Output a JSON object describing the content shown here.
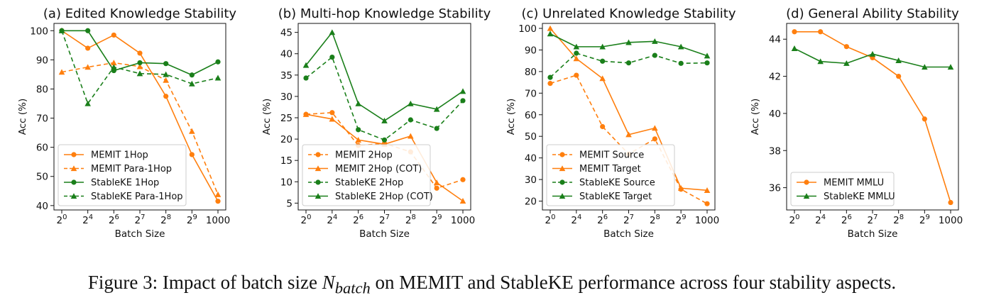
{
  "caption": {
    "prefix": "Figure 3: Impact of batch size ",
    "symbol": "N",
    "subscript": "batch",
    "suffix": " on MEMIT and StableKE performance across four stability aspects."
  },
  "colors": {
    "memit": "#ff7f0e",
    "stableke": "#1a7f1a"
  },
  "chart_data": [
    {
      "type": "line",
      "title": "(a) Edited Knowledge Stability",
      "xlabel": "Batch Size",
      "ylabel": "Acc (%)",
      "categories": [
        "2^0",
        "2^4",
        "2^6",
        "2^7",
        "2^8",
        "2^9",
        "1000"
      ],
      "ylim": [
        38.5,
        102.5
      ],
      "yticks": [
        40,
        50,
        60,
        70,
        80,
        90,
        100
      ],
      "legend_position": "lower-left",
      "series": [
        {
          "name": "MEMIT 1Hop",
          "model": "memit",
          "dash": "solid",
          "marker": "circle",
          "values": [
            100,
            94,
            98.5,
            92.3,
            77.5,
            57.5,
            41.5
          ]
        },
        {
          "name": "MEMIT Para-1Hop",
          "model": "memit",
          "dash": "dashed",
          "marker": "triangle",
          "values": [
            85.8,
            87.5,
            89,
            87.7,
            83,
            65.5,
            43.8
          ]
        },
        {
          "name": "StableKE 1Hop",
          "model": "stableke",
          "dash": "solid",
          "marker": "circle",
          "values": [
            100,
            100,
            86.3,
            89,
            88.7,
            84.8,
            89.3
          ]
        },
        {
          "name": "StableKE Para-1Hop",
          "model": "stableke",
          "dash": "dashed",
          "marker": "triangle",
          "values": [
            100,
            75,
            87.5,
            85.3,
            85,
            81.8,
            83.8
          ]
        }
      ]
    },
    {
      "type": "line",
      "title": "(b) Multi-hop Knowledge Stability",
      "xlabel": "Batch Size",
      "ylabel": "Acc (%)",
      "categories": [
        "2^0",
        "2^4",
        "2^6",
        "2^7",
        "2^8",
        "2^9",
        "1000"
      ],
      "ylim": [
        3.4,
        47.1
      ],
      "yticks": [
        5,
        10,
        15,
        20,
        25,
        30,
        35,
        40,
        45
      ],
      "legend_position": "lower-left",
      "series": [
        {
          "name": "MEMIT 2Hop",
          "model": "memit",
          "dash": "dashed",
          "marker": "circle",
          "values": [
            25.8,
            26.2,
            18.5,
            19,
            17,
            8.5,
            10.5
          ]
        },
        {
          "name": "MEMIT 2Hop (COT)",
          "model": "memit",
          "dash": "solid",
          "marker": "triangle",
          "values": [
            25.8,
            24.7,
            19.8,
            18.8,
            20.7,
            9.8,
            5.5
          ]
        },
        {
          "name": "StableKE 2Hop",
          "model": "stableke",
          "dash": "dashed",
          "marker": "circle",
          "values": [
            34.3,
            39.2,
            22.2,
            19.8,
            24.5,
            22.5,
            29
          ]
        },
        {
          "name": "StableKE 2Hop (COT)",
          "model": "stableke",
          "dash": "solid",
          "marker": "triangle",
          "values": [
            37.3,
            45,
            28.3,
            24.3,
            28.3,
            27,
            31.2
          ]
        }
      ]
    },
    {
      "type": "line",
      "title": "(c) Unrelated Knowledge Stability",
      "xlabel": "Batch Size",
      "ylabel": "Acc (%)",
      "categories": [
        "2^0",
        "2^4",
        "2^6",
        "2^7",
        "2^8",
        "2^9",
        "1000"
      ],
      "ylim": [
        15.9,
        102.3
      ],
      "yticks": [
        20,
        30,
        40,
        50,
        60,
        70,
        80,
        90,
        100
      ],
      "legend_position": "lower-left",
      "series": [
        {
          "name": "MEMIT Source",
          "model": "memit",
          "dash": "dashed",
          "marker": "circle",
          "values": [
            74.5,
            78.3,
            54.5,
            41.8,
            48.8,
            25.5,
            18.8
          ]
        },
        {
          "name": "MEMIT Target",
          "model": "memit",
          "dash": "solid",
          "marker": "triangle",
          "values": [
            100,
            86,
            76.8,
            50.8,
            53.8,
            26,
            25
          ]
        },
        {
          "name": "StableKE Source",
          "model": "stableke",
          "dash": "dashed",
          "marker": "circle",
          "values": [
            77.3,
            88.5,
            84.8,
            84,
            87.5,
            83.8,
            84
          ]
        },
        {
          "name": "StableKE Target",
          "model": "stableke",
          "dash": "solid",
          "marker": "triangle",
          "values": [
            97.5,
            91.5,
            91.5,
            93.5,
            94,
            91.5,
            87.3
          ]
        }
      ]
    },
    {
      "type": "line",
      "title": "(d) General Ability Stability",
      "xlabel": "Batch Size",
      "ylabel": "Acc (%)",
      "categories": [
        "2^0",
        "2^4",
        "2^6",
        "2^7",
        "2^8",
        "2^9",
        "1000"
      ],
      "ylim": [
        34.8,
        44.85
      ],
      "yticks": [
        36,
        38,
        40,
        42,
        44
      ],
      "legend_position": "lower-left",
      "series": [
        {
          "name": "MEMIT MMLU",
          "model": "memit",
          "dash": "solid",
          "marker": "circle",
          "values": [
            44.4,
            44.4,
            43.6,
            43,
            42,
            39.7,
            35.2
          ]
        },
        {
          "name": "StableKE MMLU",
          "model": "stableke",
          "dash": "solid",
          "marker": "triangle",
          "values": [
            43.5,
            42.8,
            42.7,
            43.2,
            42.85,
            42.5,
            42.5
          ]
        }
      ]
    }
  ]
}
